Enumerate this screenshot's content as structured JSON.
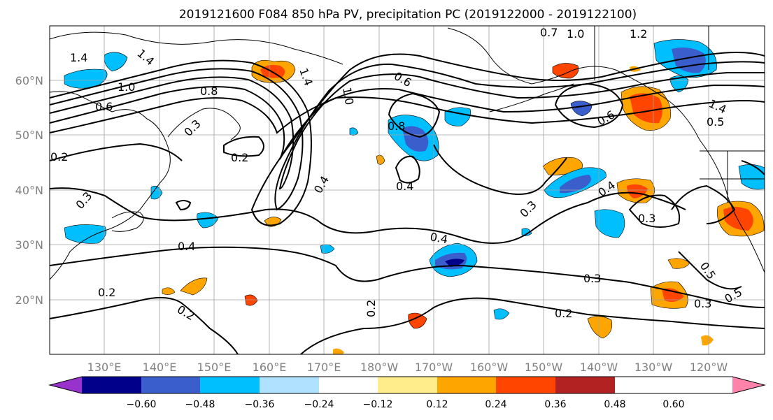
{
  "title": "2019121600 F084 850 hPa PV, precipitation PC (2019122000 - 2019122100)",
  "lat_ticks": [
    "60°N",
    "50°N",
    "40°N",
    "30°N",
    "20°N"
  ],
  "lon_ticks": [
    "130°E",
    "140°E",
    "150°E",
    "160°E",
    "170°E",
    "180°W",
    "170°W",
    "160°W",
    "150°W",
    "140°W",
    "130°W",
    "120°W"
  ],
  "colorbar": {
    "ticks": [
      "−0.60",
      "−0.48",
      "−0.36",
      "−0.24",
      "−0.12",
      "0.12",
      "0.24",
      "0.36",
      "0.48",
      "0.60"
    ],
    "colors": [
      "#9932cc",
      "#00008b",
      "#3a5fcd",
      "#00bfff",
      "#b0e2ff",
      "#ffffff",
      "#ffec8b",
      "#ffa500",
      "#ff4500",
      "#b22222",
      "#ff82ab"
    ]
  },
  "contour_labels": [
    "1.4",
    "1.4",
    "1.0",
    "0.8",
    "0.6",
    "0.3",
    "0.2",
    "0.2",
    "0.4",
    "0.4",
    "1.0",
    "0.6",
    "0.7",
    "1.0",
    "1.2",
    "0.8",
    "0.6",
    "1.4",
    "0.5",
    "0.4",
    "0.3",
    "0.3",
    "0.4",
    "0.3",
    "0.2",
    "0.2",
    "0.4",
    "0.5",
    "0.5",
    "0.2",
    "1.4",
    "0.2",
    "0.3",
    "0.3"
  ]
}
